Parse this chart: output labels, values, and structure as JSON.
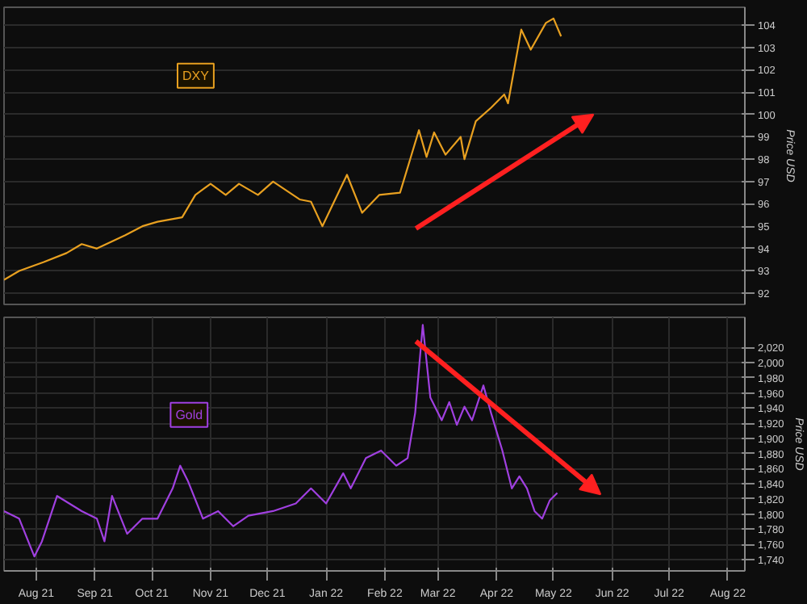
{
  "chart_data": [
    {
      "type": "line",
      "ylabel": "Price USD",
      "xlim": [
        "2021-07-29",
        "2022-08-24"
      ],
      "ylim": [
        91.5,
        104.8
      ],
      "yticks": [
        92,
        93,
        94,
        95,
        96,
        97,
        98,
        99,
        100,
        101,
        102,
        103,
        104
      ],
      "grid": true,
      "tick_labels": "y",
      "line_style": "solid",
      "marker": "none",
      "x": [
        "2021-07-29",
        "2021-08-06",
        "2021-08-19",
        "2021-08-31",
        "2021-09-08",
        "2021-09-16",
        "2021-10-01",
        "2021-10-10",
        "2021-10-18",
        "2021-10-31",
        "2021-11-07",
        "2021-11-15",
        "2021-11-23",
        "2021-11-30",
        "2021-12-10",
        "2021-12-18",
        "2022-01-01",
        "2022-01-07",
        "2022-01-13",
        "2022-01-26",
        "2022-02-03",
        "2022-02-12",
        "2022-02-23",
        "2022-03-05",
        "2022-03-09",
        "2022-03-13",
        "2022-03-19",
        "2022-03-27",
        "2022-03-29",
        "2022-04-04",
        "2022-04-12",
        "2022-04-19",
        "2022-04-21",
        "2022-04-28",
        "2022-05-03",
        "2022-05-11",
        "2022-05-15",
        "2022-05-19"
      ],
      "series": [
        {
          "name": "DXY",
          "color": "#e8a020",
          "values": [
            92.6,
            93.0,
            93.4,
            93.8,
            94.2,
            94.0,
            94.6,
            95.0,
            95.2,
            95.4,
            96.4,
            96.9,
            96.4,
            96.9,
            96.4,
            97.0,
            96.2,
            96.1,
            95.0,
            97.3,
            95.6,
            96.4,
            96.5,
            99.3,
            98.1,
            99.2,
            98.2,
            99.0,
            98.0,
            99.7,
            100.3,
            100.9,
            100.5,
            103.8,
            102.9,
            104.1,
            104.3,
            103.5
          ]
        }
      ]
    },
    {
      "type": "line",
      "ylabel": "Price USD",
      "xlim": [
        "2021-07-29",
        "2022-08-24"
      ],
      "ylim": [
        1725,
        2060
      ],
      "yticks": [
        {
          "value": 1740,
          "label": "1,740"
        },
        {
          "value": 1760,
          "label": "1,760"
        },
        {
          "value": 1780,
          "label": "1,780"
        },
        {
          "value": 1800,
          "label": "1,800"
        },
        {
          "value": 1820,
          "label": "1,820"
        },
        {
          "value": 1840,
          "label": "1,840"
        },
        {
          "value": 1860,
          "label": "1,860"
        },
        {
          "value": 1880,
          "label": "1,880"
        },
        {
          "value": 1900,
          "label": "1,900"
        },
        {
          "value": 1920,
          "label": "1,920"
        },
        {
          "value": 1940,
          "label": "1,940"
        },
        {
          "value": 1960,
          "label": "1,960"
        },
        {
          "value": 1980,
          "label": "1,980"
        },
        {
          "value": 2000,
          "label": "2,000"
        },
        {
          "value": 2020,
          "label": "2,020"
        }
      ],
      "grid": true,
      "line_style": "solid",
      "marker": "none",
      "xticks": [
        {
          "value": "2021-08-15",
          "label": "Aug 21"
        },
        {
          "value": "2021-09-15",
          "label": "Sep 21"
        },
        {
          "value": "2021-10-15",
          "label": "Oct 21"
        },
        {
          "value": "2021-11-15",
          "label": "Nov 21"
        },
        {
          "value": "2021-12-15",
          "label": "Dec 21"
        },
        {
          "value": "2022-01-15",
          "label": "Jan 22"
        },
        {
          "value": "2022-02-15",
          "label": "Feb 22"
        },
        {
          "value": "2022-03-15",
          "label": "Mar 22"
        },
        {
          "value": "2022-04-15",
          "label": "Apr 22"
        },
        {
          "value": "2022-05-15",
          "label": "May 22"
        },
        {
          "value": "2022-06-15",
          "label": "Jun 22"
        },
        {
          "value": "2022-07-15",
          "label": "Jul 22"
        },
        {
          "value": "2022-08-15",
          "label": "Aug 22"
        }
      ],
      "x": [
        "2021-07-29",
        "2021-08-06",
        "2021-08-14",
        "2021-08-18",
        "2021-08-26",
        "2021-09-08",
        "2021-09-16",
        "2021-09-20",
        "2021-09-24",
        "2021-10-02",
        "2021-10-10",
        "2021-10-18",
        "2021-10-26",
        "2021-10-30",
        "2021-11-03",
        "2021-11-11",
        "2021-11-19",
        "2021-11-27",
        "2021-12-05",
        "2021-12-18",
        "2021-12-30",
        "2022-01-07",
        "2022-01-15",
        "2022-01-24",
        "2022-01-28",
        "2022-02-05",
        "2022-02-13",
        "2022-02-21",
        "2022-02-27",
        "2022-03-03",
        "2022-03-07",
        "2022-03-11",
        "2022-03-17",
        "2022-03-21",
        "2022-03-25",
        "2022-03-29",
        "2022-04-02",
        "2022-04-08",
        "2022-04-12",
        "2022-04-18",
        "2022-04-23",
        "2022-04-27",
        "2022-05-01",
        "2022-05-05",
        "2022-05-09",
        "2022-05-13",
        "2022-05-17"
      ],
      "series": [
        {
          "name": "Gold",
          "color": "#a040e0",
          "values": [
            1804,
            1794,
            1744,
            1764,
            1824,
            1804,
            1794,
            1764,
            1824,
            1774,
            1794,
            1794,
            1834,
            1864,
            1844,
            1794,
            1804,
            1784,
            1798,
            1804,
            1814,
            1834,
            1814,
            1854,
            1834,
            1874,
            1884,
            1864,
            1874,
            1934,
            2050,
            1954,
            1924,
            1948,
            1918,
            1942,
            1924,
            1970,
            1934,
            1884,
            1834,
            1850,
            1834,
            1804,
            1794,
            1818,
            1828
          ]
        }
      ]
    }
  ]
}
